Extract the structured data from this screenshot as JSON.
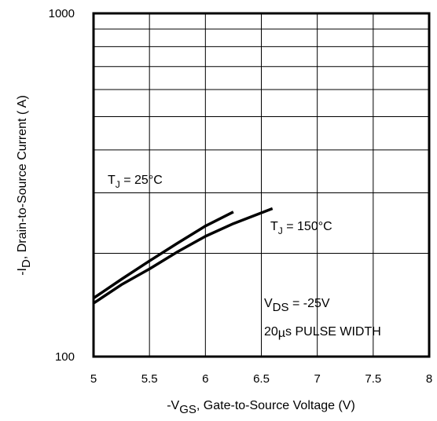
{
  "chart_data": {
    "type": "line",
    "title": "",
    "xlabel": {
      "prefix": "-V",
      "sub": "GS",
      "suffix": ", Gate-to-Source Voltage (V)"
    },
    "ylabel": {
      "prefix": "-I",
      "sub": "D",
      "suffix": ", Drain-to-Source Current (  A)"
    },
    "xlim": [
      5,
      8
    ],
    "ylim": [
      100,
      1000
    ],
    "yscale": "log",
    "grid": true,
    "x_ticks": [
      "5",
      "5.5",
      "6",
      "6.5",
      "7",
      "7.5",
      "8"
    ],
    "y_ticks": [
      "100",
      "1000"
    ],
    "series": [
      {
        "name": "T_J = 25°C",
        "x": [
          5.0,
          5.25,
          5.5,
          5.75,
          6.0,
          6.25
        ],
        "y": [
          148,
          168,
          190,
          214,
          240,
          264
        ]
      },
      {
        "name": "T_J = 150°C",
        "x": [
          5.0,
          5.25,
          5.5,
          5.75,
          6.0,
          6.25,
          6.6
        ],
        "y": [
          143,
          162,
          180,
          202,
          224,
          244,
          270
        ]
      }
    ],
    "annotations": {
      "tj25": {
        "prefix": "T",
        "sub": "J",
        "suffix": " =  25°C"
      },
      "tj150": {
        "prefix": "T",
        "sub": "J",
        "suffix": " = 150°C"
      },
      "vds": {
        "prefix": "V",
        "sub": "DS",
        "suffix": " = -25V"
      },
      "pulse": {
        "prefix": "20",
        "mu": "µ",
        "suffix": "s PULSE  WIDTH"
      }
    }
  }
}
